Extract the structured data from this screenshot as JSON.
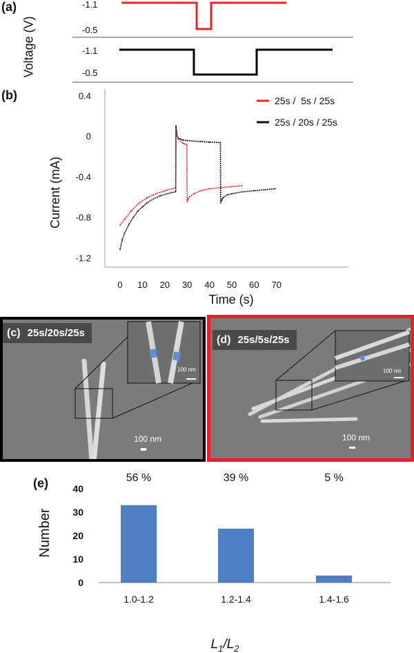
{
  "figure": {
    "panel_a": {
      "letter": "(a)",
      "ylabel": "Voltage (V)",
      "top_trace": {
        "level_high": "-1.1",
        "level_low": "-0.5",
        "color": "#ee2222"
      },
      "bottom_trace": {
        "level_high": "-1.1",
        "level_low": "-0.5",
        "color": "#000000"
      }
    },
    "panel_b": {
      "letter": "(b)"
    },
    "panel_c": {
      "letter": "(c)",
      "label": "25s/20s/25s",
      "scale_main": "100 nm",
      "scale_inset": "100 nm",
      "frame_color": "#000000"
    },
    "panel_d": {
      "letter": "(d)",
      "label": "25s/5s/25s",
      "scale_main": "100 nm",
      "scale_inset": "100 nm",
      "frame_color": "#e8202a"
    },
    "panel_e": {
      "letter": "(e)"
    }
  },
  "chart_data": [
    {
      "panel": "b",
      "type": "line",
      "xlabel": "Time (s)",
      "ylabel": "Current (mA)",
      "xlim": [
        -5,
        75
      ],
      "ylim": [
        -1.3,
        0.5
      ],
      "xticks": [
        "0",
        "10",
        "20",
        "30",
        "40",
        "50",
        "60",
        "70"
      ],
      "yticks": [
        "0.4",
        "0",
        "-0.4",
        "-0.8",
        "-1.2"
      ],
      "legend_position": "top-right",
      "series": [
        {
          "name": "25s /  5s / 25s",
          "color": "#ee2222",
          "x": [
            0,
            2,
            5,
            8,
            12,
            16,
            20,
            24.9,
            25,
            25.5,
            26,
            27,
            28,
            29,
            29.9,
            30,
            30.5,
            31,
            33,
            36,
            40,
            45,
            50,
            54.5
          ],
          "y": [
            -0.88,
            -0.82,
            -0.74,
            -0.67,
            -0.61,
            -0.57,
            -0.54,
            -0.51,
            0.09,
            0.0,
            -0.03,
            -0.05,
            -0.07,
            -0.08,
            -0.09,
            -0.65,
            -0.62,
            -0.6,
            -0.57,
            -0.54,
            -0.52,
            -0.51,
            -0.5,
            -0.49
          ]
        },
        {
          "name": "25s / 20s / 25s",
          "color": "#111111",
          "x": [
            0,
            1,
            2,
            4,
            6,
            8,
            10,
            12,
            15,
            18,
            21,
            24.9,
            25,
            25.5,
            26,
            27,
            28,
            30,
            33,
            36,
            40,
            44.9,
            45,
            45.5,
            46,
            48,
            50,
            55,
            60,
            65,
            69.5
          ],
          "y": [
            -1.12,
            -1.02,
            -0.96,
            -0.87,
            -0.8,
            -0.74,
            -0.7,
            -0.66,
            -0.62,
            -0.59,
            -0.57,
            -0.55,
            0.1,
            0.0,
            -0.02,
            -0.03,
            -0.04,
            -0.045,
            -0.05,
            -0.055,
            -0.06,
            -0.065,
            -0.66,
            -0.63,
            -0.61,
            -0.58,
            -0.57,
            -0.55,
            -0.54,
            -0.53,
            -0.52
          ]
        }
      ]
    },
    {
      "panel": "e",
      "type": "bar",
      "xlabel": "L1/L2",
      "ylabel": "Number",
      "ylim": [
        0,
        40
      ],
      "yticks": [
        "0",
        "10",
        "20",
        "30",
        "40"
      ],
      "categories": [
        "1.0-1.2",
        "1.2-1.4",
        "1.4-1.6"
      ],
      "values": [
        33,
        23,
        3
      ],
      "annotations": [
        "56 %",
        "39 %",
        "5 %"
      ],
      "bar_color": "#4f7ec2"
    }
  ]
}
